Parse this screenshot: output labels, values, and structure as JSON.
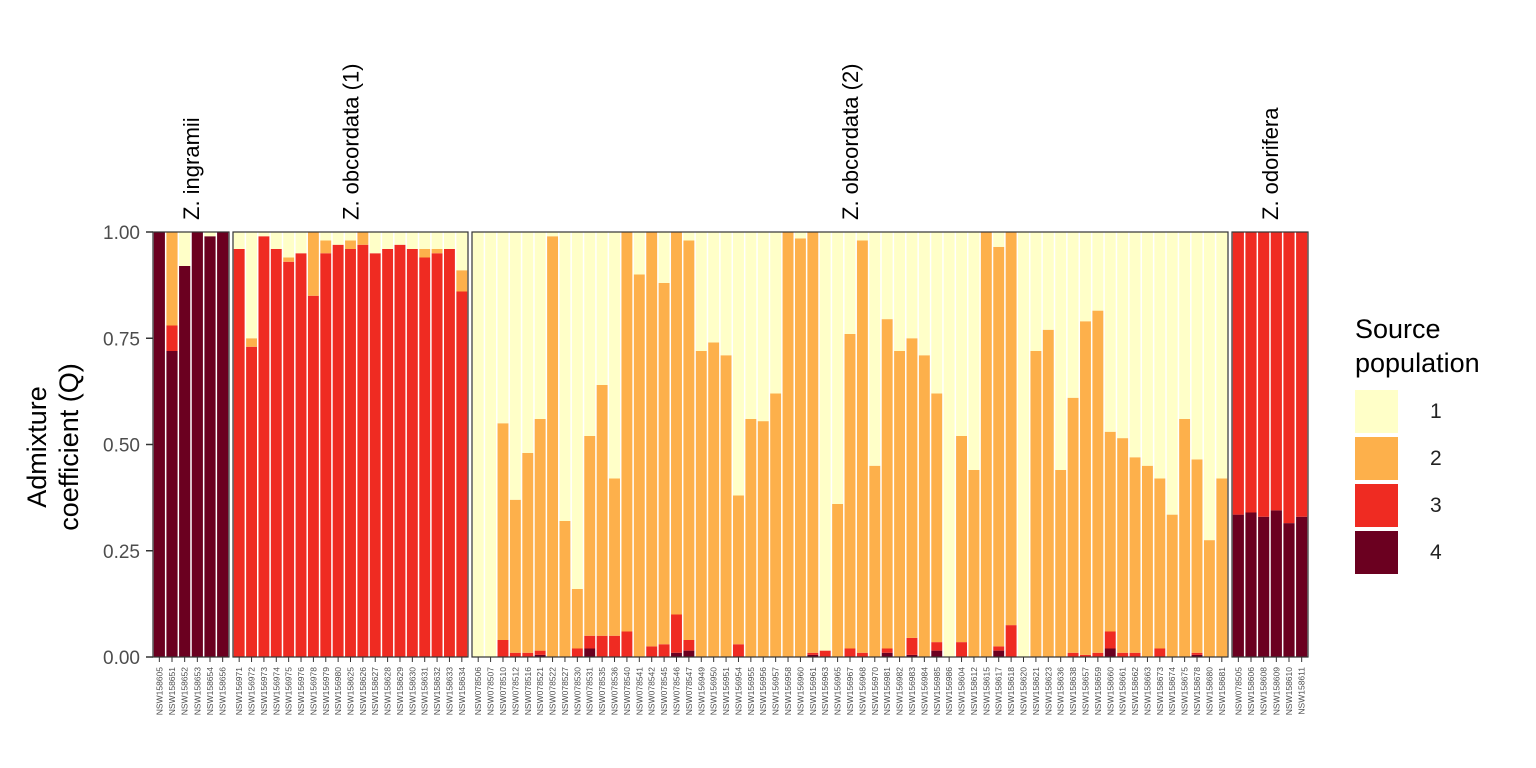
{
  "chart_data": {
    "type": "bar",
    "stacked": true,
    "ylabel": [
      "Admixture",
      "coefficient (Q)"
    ],
    "ylim": [
      0,
      1
    ],
    "yticks": [
      "0.00",
      "0.25",
      "0.50",
      "0.75",
      "1.00"
    ],
    "legend": {
      "title": [
        "Source",
        "population"
      ],
      "placement": "right",
      "entries": [
        {
          "label": "1",
          "color": "#FFFFC8"
        },
        {
          "label": "2",
          "color": "#FDB04B"
        },
        {
          "label": "3",
          "color": "#EF2B22"
        },
        {
          "label": "4",
          "color": "#6B0020"
        }
      ]
    },
    "panels": [
      {
        "title": "Z. ingramii",
        "samples": [
          "NSW158605",
          "NSW158651",
          "NSW158652",
          "NSW158653",
          "NSW158654",
          "NSW158656"
        ],
        "q": [
          [
            0,
            0,
            0,
            1
          ],
          [
            0,
            0.22,
            0.06,
            0.72
          ],
          [
            0.08,
            0,
            0,
            0.92
          ],
          [
            0,
            0,
            0,
            1
          ],
          [
            0.01,
            0,
            0,
            0.99
          ],
          [
            0,
            0,
            0,
            1
          ]
        ]
      },
      {
        "title": "Z. obcordata (1)",
        "samples": [
          "NSW156971",
          "NSW156972",
          "NSW156973",
          "NSW156974",
          "NSW156975",
          "NSW156976",
          "NSW156978",
          "NSW156979",
          "NSW156980",
          "NSW158625",
          "NSW158626",
          "NSW158627",
          "NSW158628",
          "NSW158629",
          "NSW158630",
          "NSW158631",
          "NSW158632",
          "NSW158633",
          "NSW158634"
        ],
        "q": [
          [
            0.04,
            0,
            0.96,
            0
          ],
          [
            0.25,
            0.02,
            0.73,
            0
          ],
          [
            0.01,
            0,
            0.99,
            0
          ],
          [
            0.04,
            0,
            0.96,
            0
          ],
          [
            0.06,
            0.01,
            0.93,
            0
          ],
          [
            0.05,
            0,
            0.95,
            0
          ],
          [
            0,
            0.15,
            0.85,
            0
          ],
          [
            0.02,
            0.03,
            0.95,
            0
          ],
          [
            0.03,
            0,
            0.97,
            0
          ],
          [
            0.02,
            0.02,
            0.96,
            0
          ],
          [
            0,
            0.03,
            0.97,
            0
          ],
          [
            0.05,
            0,
            0.95,
            0
          ],
          [
            0.04,
            0,
            0.96,
            0
          ],
          [
            0.03,
            0,
            0.97,
            0
          ],
          [
            0.04,
            0,
            0.96,
            0
          ],
          [
            0.04,
            0.02,
            0.94,
            0
          ],
          [
            0.04,
            0.01,
            0.95,
            0
          ],
          [
            0.04,
            0,
            0.96,
            0
          ],
          [
            0.09,
            0.05,
            0.86,
            0
          ]
        ]
      },
      {
        "title": "Z. obcordata (2)",
        "samples": [
          "NSW078506",
          "NSW078507",
          "NSW078510",
          "NSW078512",
          "NSW078516",
          "NSW078521",
          "NSW078522",
          "NSW078527",
          "NSW078530",
          "NSW078531",
          "NSW078535",
          "NSW078536",
          "NSW078540",
          "NSW078541",
          "NSW078542",
          "NSW078545",
          "NSW078546",
          "NSW078547",
          "NSW156949",
          "NSW156950",
          "NSW156951",
          "NSW156954",
          "NSW156955",
          "NSW156956",
          "NSW156957",
          "NSW156958",
          "NSW156960",
          "NSW156961",
          "NSW156963",
          "NSW156965",
          "NSW156967",
          "NSW156968",
          "NSW156970",
          "NSW156981",
          "NSW156982",
          "NSW156983",
          "NSW156984",
          "NSW156985",
          "NSW156986",
          "NSW158604",
          "NSW158612",
          "NSW158615",
          "NSW158617",
          "NSW158618",
          "NSW158620",
          "NSW158621",
          "NSW158623",
          "NSW158636",
          "NSW158638",
          "NSW158657",
          "NSW158659",
          "NSW158660",
          "NSW158661",
          "NSW158662",
          "NSW158663",
          "NSW158673",
          "NSW158674",
          "NSW158675",
          "NSW158678",
          "NSW158680",
          "NSW158681"
        ],
        "q": [
          [
            1,
            0,
            0,
            0
          ],
          [
            1,
            0,
            0,
            0
          ],
          [
            0.45,
            0.51,
            0.04,
            0
          ],
          [
            0.63,
            0.36,
            0.01,
            0
          ],
          [
            0.52,
            0.47,
            0.01,
            0
          ],
          [
            0.44,
            0.545,
            0.01,
            0.005
          ],
          [
            0.01,
            0.99,
            0,
            0
          ],
          [
            0.68,
            0.32,
            0,
            0
          ],
          [
            0.84,
            0.14,
            0.02,
            0
          ],
          [
            0.48,
            0.47,
            0.03,
            0.02
          ],
          [
            0.36,
            0.59,
            0.05,
            0
          ],
          [
            0.58,
            0.37,
            0.05,
            0
          ],
          [
            0,
            0.94,
            0.06,
            0
          ],
          [
            0.1,
            0.9,
            0,
            0
          ],
          [
            0,
            0.975,
            0.025,
            0
          ],
          [
            0.12,
            0.85,
            0.03,
            0
          ],
          [
            0,
            0.9,
            0.09,
            0.01
          ],
          [
            0.02,
            0.94,
            0.025,
            0.015
          ],
          [
            0.28,
            0.72,
            0,
            0
          ],
          [
            0.26,
            0.74,
            0,
            0
          ],
          [
            0.29,
            0.71,
            0,
            0
          ],
          [
            0.62,
            0.35,
            0.03,
            0
          ],
          [
            0.44,
            0.56,
            0,
            0
          ],
          [
            0.445,
            0.555,
            0,
            0
          ],
          [
            0.38,
            0.62,
            0,
            0
          ],
          [
            0,
            1,
            0,
            0
          ],
          [
            0.015,
            0.985,
            0,
            0
          ],
          [
            0,
            0.99,
            0.005,
            0.005
          ],
          [
            0.985,
            0,
            0.015,
            0
          ],
          [
            0.64,
            0.36,
            0,
            0
          ],
          [
            0.24,
            0.74,
            0.02,
            0
          ],
          [
            0.02,
            0.97,
            0.01,
            0
          ],
          [
            0.55,
            0.45,
            0,
            0
          ],
          [
            0.205,
            0.775,
            0.01,
            0.01
          ],
          [
            0.28,
            0.72,
            0,
            0
          ],
          [
            0.25,
            0.705,
            0.04,
            0.005
          ],
          [
            0.29,
            0.71,
            0,
            0
          ],
          [
            0.38,
            0.585,
            0.02,
            0.015
          ],
          [
            1,
            0,
            0,
            0
          ],
          [
            0.48,
            0.485,
            0.035,
            0
          ],
          [
            0.56,
            0.44,
            0,
            0
          ],
          [
            0,
            1,
            0,
            0
          ],
          [
            0.035,
            0.94,
            0.01,
            0.015
          ],
          [
            0,
            0.925,
            0.075,
            0
          ],
          [
            1,
            0,
            0,
            0
          ],
          [
            0.28,
            0.72,
            0,
            0
          ],
          [
            0.23,
            0.77,
            0,
            0
          ],
          [
            0.56,
            0.44,
            0,
            0
          ],
          [
            0.39,
            0.6,
            0.01,
            0
          ],
          [
            0.21,
            0.785,
            0.005,
            0
          ],
          [
            0.185,
            0.805,
            0.01,
            0
          ],
          [
            0.47,
            0.47,
            0.04,
            0.02
          ],
          [
            0.485,
            0.505,
            0.01,
            0
          ],
          [
            0.53,
            0.46,
            0.01,
            0
          ],
          [
            0.55,
            0.45,
            0,
            0
          ],
          [
            0.58,
            0.4,
            0.02,
            0
          ],
          [
            0.665,
            0.335,
            0,
            0
          ],
          [
            0.44,
            0.56,
            0,
            0
          ],
          [
            0.535,
            0.455,
            0.005,
            0.005
          ],
          [
            0.725,
            0.275,
            0,
            0
          ],
          [
            0.58,
            0.42,
            0,
            0
          ]
        ]
      },
      {
        "title": "Z. odorifera",
        "samples": [
          "NSW078505",
          "NSW158606",
          "NSW158608",
          "NSW158609",
          "NSW158610",
          "NSW158611"
        ],
        "q": [
          [
            0,
            0,
            0.665,
            0.335
          ],
          [
            0,
            0,
            0.66,
            0.34
          ],
          [
            0,
            0,
            0.67,
            0.33
          ],
          [
            0,
            0,
            0.655,
            0.345
          ],
          [
            0,
            0,
            0.685,
            0.315
          ],
          [
            0,
            0,
            0.67,
            0.33
          ]
        ]
      }
    ]
  }
}
